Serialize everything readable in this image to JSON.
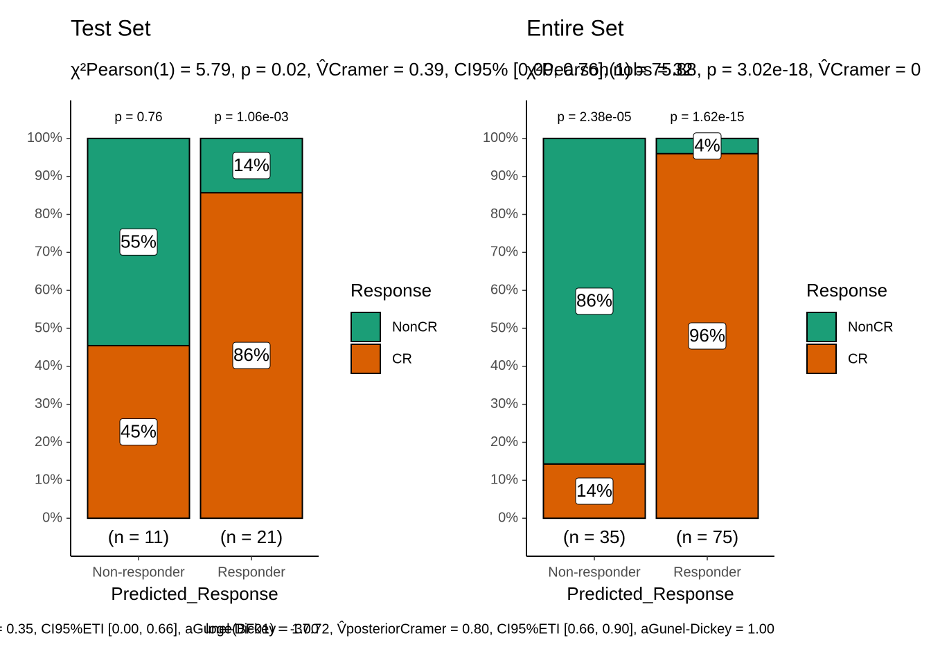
{
  "chart_data": [
    {
      "type": "bar",
      "stacked": true,
      "title": "Test Set",
      "subtitle": "χ²Pearson(1) = 5.79, p = 0.02, V̂Cramer = 0.39, CI95% [0.00, 0.76], nobs = 32",
      "caption": "= 0.35, CI95%ETI [0.00, 0.66], aGunel-Dickey = 1.00",
      "xlabel": "Predicted_Response",
      "legend_title": "Response",
      "categories": [
        "Non-responder",
        "Responder"
      ],
      "top_labels": [
        "p = 0.76",
        "p = 1.06e-03"
      ],
      "count_labels": [
        "(n = 11)",
        "(n = 21)"
      ],
      "series": [
        {
          "name": "NonCR",
          "color": "#1b9e77",
          "values": [
            54.55,
            14.29
          ],
          "value_labels": [
            "55%",
            "14%"
          ]
        },
        {
          "name": "CR",
          "color": "#d95f02",
          "values": [
            45.45,
            85.71
          ],
          "value_labels": [
            "45%",
            "86%"
          ]
        }
      ],
      "ylim": [
        -10,
        110
      ],
      "yticks": [
        {
          "value": 0,
          "label": "0%"
        },
        {
          "value": 10,
          "label": "10%"
        },
        {
          "value": 20,
          "label": "20%"
        },
        {
          "value": 30,
          "label": "30%"
        },
        {
          "value": 40,
          "label": "40%"
        },
        {
          "value": 50,
          "label": "50%"
        },
        {
          "value": 60,
          "label": "60%"
        },
        {
          "value": 70,
          "label": "70%"
        },
        {
          "value": 80,
          "label": "80%"
        },
        {
          "value": 90,
          "label": "90%"
        },
        {
          "value": 100,
          "label": "100%"
        }
      ]
    },
    {
      "type": "bar",
      "stacked": true,
      "title": "Entire Set",
      "subtitle": "χ²Pearson(1) = 75.88, p = 3.02e-18, V̂Cramer = 0",
      "caption": "loge(BF01) = -37.72, V̂posteriorCramer = 0.80, CI95%ETI [0.66, 0.90], aGunel-Dickey = 1.00",
      "xlabel": "Predicted_Response",
      "legend_title": "Response",
      "categories": [
        "Non-responder",
        "Responder"
      ],
      "top_labels": [
        "p = 2.38e-05",
        "p = 1.62e-15"
      ],
      "count_labels": [
        "(n = 35)",
        "(n = 75)"
      ],
      "series": [
        {
          "name": "NonCR",
          "color": "#1b9e77",
          "values": [
            85.71,
            4
          ],
          "value_labels": [
            "86%",
            "4%"
          ]
        },
        {
          "name": "CR",
          "color": "#d95f02",
          "values": [
            14.29,
            96
          ],
          "value_labels": [
            "14%",
            "96%"
          ]
        }
      ],
      "ylim": [
        -10,
        110
      ],
      "yticks": [
        {
          "value": 0,
          "label": "0%"
        },
        {
          "value": 10,
          "label": "10%"
        },
        {
          "value": 20,
          "label": "20%"
        },
        {
          "value": 30,
          "label": "30%"
        },
        {
          "value": 40,
          "label": "40%"
        },
        {
          "value": 50,
          "label": "50%"
        },
        {
          "value": 60,
          "label": "60%"
        },
        {
          "value": 70,
          "label": "70%"
        },
        {
          "value": 80,
          "label": "80%"
        },
        {
          "value": 90,
          "label": "90%"
        },
        {
          "value": 100,
          "label": "100%"
        }
      ]
    }
  ]
}
